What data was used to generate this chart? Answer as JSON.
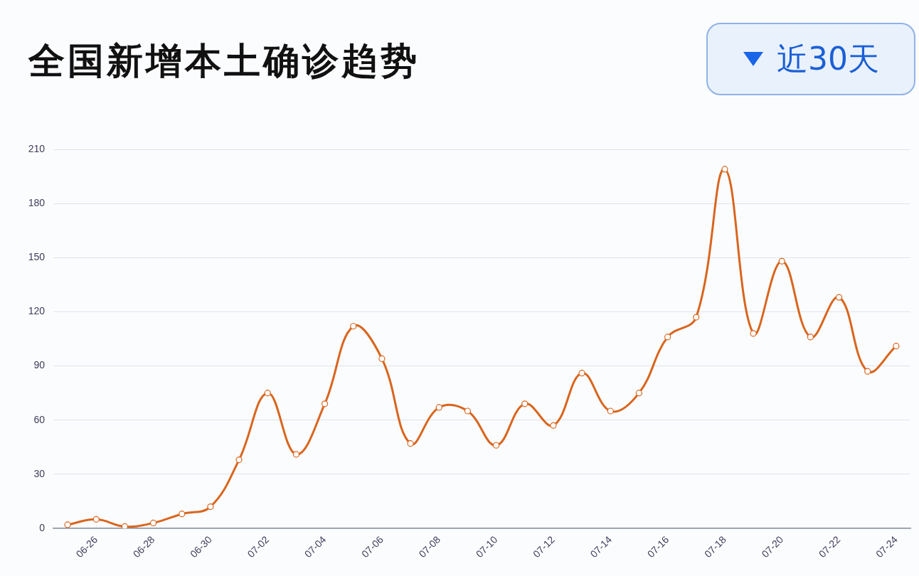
{
  "chart_data": {
    "type": "line",
    "title": "全国新增本土确诊趋势",
    "annotations": [
      "近30天"
    ],
    "categories": [
      null,
      "06-26",
      null,
      "06-28",
      null,
      "06-30",
      null,
      "07-02",
      null,
      "07-04",
      null,
      "07-06",
      null,
      "07-08",
      null,
      "07-10",
      null,
      "07-12",
      null,
      "07-14",
      null,
      "07-16",
      null,
      "07-18",
      null,
      "07-20",
      null,
      "07-22",
      null,
      "07-24"
    ],
    "values": [
      2,
      5,
      1,
      3,
      8,
      12,
      38,
      75,
      41,
      69,
      112,
      94,
      47,
      67,
      65,
      46,
      69,
      57,
      86,
      65,
      75,
      106,
      117,
      199,
      108,
      148,
      106,
      128,
      87,
      101
    ],
    "color": "#d9651e",
    "ylim": [
      0,
      210
    ],
    "yticks": [
      0,
      30,
      60,
      90,
      120,
      150,
      180,
      210
    ],
    "grid": "y",
    "marker": "circle",
    "line_style": "solid"
  }
}
